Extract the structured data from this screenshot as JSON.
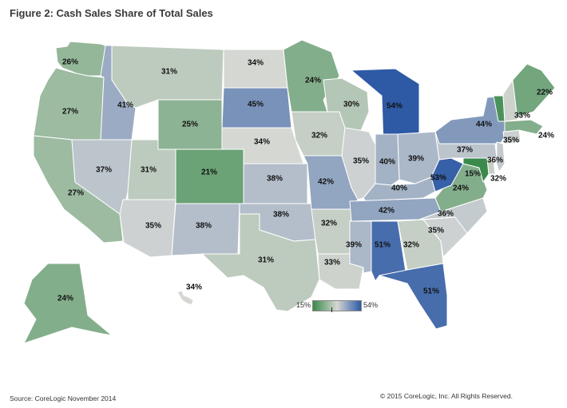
{
  "title": "Figure 2: Cash Sales Share of Total Sales",
  "source": "Source: CoreLogic November 2014",
  "copyright": "© 2015 CoreLogic, Inc. All Rights Reserved.",
  "legend": {
    "min_label": "15%",
    "max_label": "54%",
    "min_color": "#3a8a4b",
    "mid_color": "#d5d7d3",
    "max_color": "#2e5aa5"
  },
  "states": [
    {
      "id": "WA",
      "label": "26%",
      "value": 26
    },
    {
      "id": "OR",
      "label": "27%",
      "value": 27
    },
    {
      "id": "CA",
      "label": "27%",
      "value": 27
    },
    {
      "id": "ID",
      "label": "41%",
      "value": 41
    },
    {
      "id": "NV",
      "label": "37%",
      "value": 37
    },
    {
      "id": "MT",
      "label": "31%",
      "value": 31
    },
    {
      "id": "WY",
      "label": "25%",
      "value": 25
    },
    {
      "id": "UT",
      "label": "31%",
      "value": 31
    },
    {
      "id": "AZ",
      "label": "35%",
      "value": 35
    },
    {
      "id": "CO",
      "label": "21%",
      "value": 21
    },
    {
      "id": "NM",
      "label": "38%",
      "value": 38
    },
    {
      "id": "ND",
      "label": "34%",
      "value": 34
    },
    {
      "id": "SD",
      "label": "45%",
      "value": 45
    },
    {
      "id": "NE",
      "label": "34%",
      "value": 34
    },
    {
      "id": "KS",
      "label": "38%",
      "value": 38
    },
    {
      "id": "OK",
      "label": "38%",
      "value": 38
    },
    {
      "id": "TX",
      "label": "31%",
      "value": 31
    },
    {
      "id": "MN",
      "label": "24%",
      "value": 24
    },
    {
      "id": "IA",
      "label": "32%",
      "value": 32
    },
    {
      "id": "MO",
      "label": "42%",
      "value": 42
    },
    {
      "id": "AR",
      "label": "32%",
      "value": 32
    },
    {
      "id": "LA",
      "label": "33%",
      "value": 33
    },
    {
      "id": "WI",
      "label": "30%",
      "value": 30
    },
    {
      "id": "IL",
      "label": "35%",
      "value": 35
    },
    {
      "id": "MI",
      "label": "54%",
      "value": 54
    },
    {
      "id": "IN",
      "label": "40%",
      "value": 40
    },
    {
      "id": "OH",
      "label": "39%",
      "value": 39
    },
    {
      "id": "KY",
      "label": "40%",
      "value": 40
    },
    {
      "id": "TN",
      "label": "42%",
      "value": 42
    },
    {
      "id": "MS",
      "label": "39%",
      "value": 39
    },
    {
      "id": "AL",
      "label": "51%",
      "value": 51
    },
    {
      "id": "GA",
      "label": "32%",
      "value": 32
    },
    {
      "id": "FL",
      "label": "51%",
      "value": 51
    },
    {
      "id": "SC",
      "label": "35%",
      "value": 35
    },
    {
      "id": "NC",
      "label": "36%",
      "value": 36
    },
    {
      "id": "VA",
      "label": "24%",
      "value": 24
    },
    {
      "id": "WV",
      "label": "53%",
      "value": 53
    },
    {
      "id": "PA",
      "label": "37%",
      "value": 37
    },
    {
      "id": "NY",
      "label": "44%",
      "value": 44
    },
    {
      "id": "MD",
      "label": "15%",
      "value": 15
    },
    {
      "id": "DE",
      "label": "32%",
      "value": 32
    },
    {
      "id": "NJ",
      "label": "36%",
      "value": 36
    },
    {
      "id": "CT",
      "label": "35%",
      "value": 35
    },
    {
      "id": "MA",
      "label": "24%",
      "value": 24
    },
    {
      "id": "VT",
      "label": "",
      "value": 17
    },
    {
      "id": "NH",
      "label": "33%",
      "value": 33
    },
    {
      "id": "ME",
      "label": "22%",
      "value": 22
    },
    {
      "id": "AK",
      "label": "24%",
      "value": 24
    },
    {
      "id": "HI",
      "label": "34%",
      "value": 34
    }
  ]
}
